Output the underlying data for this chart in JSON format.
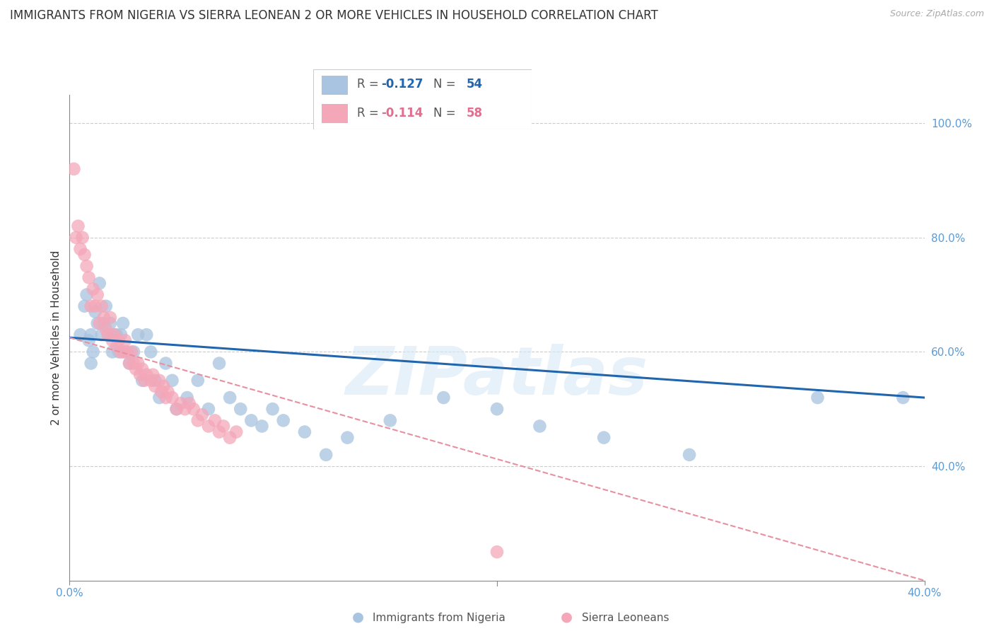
{
  "title": "IMMIGRANTS FROM NIGERIA VS SIERRA LEONEAN 2 OR MORE VEHICLES IN HOUSEHOLD CORRELATION CHART",
  "source": "Source: ZipAtlas.com",
  "ylabel": "2 or more Vehicles in Household",
  "R1": -0.127,
  "N1": 54,
  "R2": -0.114,
  "N2": 58,
  "xlim": [
    0.0,
    0.4
  ],
  "ylim": [
    0.2,
    1.05
  ],
  "yticks_right": [
    0.4,
    0.6,
    0.8,
    1.0
  ],
  "color_nigeria": "#a8c4e0",
  "color_sierra": "#f4a7b9",
  "color_nigeria_line": "#2166ac",
  "color_sierra_line": "#e88fa0",
  "watermark": "ZIPatlas",
  "nigeria_x": [
    0.005,
    0.007,
    0.008,
    0.009,
    0.01,
    0.01,
    0.011,
    0.012,
    0.013,
    0.014,
    0.015,
    0.016,
    0.017,
    0.018,
    0.019,
    0.02,
    0.021,
    0.022,
    0.023,
    0.024,
    0.025,
    0.026,
    0.028,
    0.03,
    0.032,
    0.034,
    0.036,
    0.038,
    0.04,
    0.042,
    0.045,
    0.048,
    0.05,
    0.055,
    0.06,
    0.065,
    0.07,
    0.075,
    0.08,
    0.085,
    0.09,
    0.095,
    0.1,
    0.11,
    0.12,
    0.13,
    0.15,
    0.175,
    0.2,
    0.22,
    0.25,
    0.29,
    0.35,
    0.39
  ],
  "nigeria_y": [
    0.63,
    0.68,
    0.7,
    0.62,
    0.58,
    0.63,
    0.6,
    0.67,
    0.65,
    0.72,
    0.63,
    0.65,
    0.68,
    0.63,
    0.65,
    0.6,
    0.63,
    0.63,
    0.6,
    0.63,
    0.65,
    0.6,
    0.58,
    0.6,
    0.63,
    0.55,
    0.63,
    0.6,
    0.55,
    0.52,
    0.58,
    0.55,
    0.5,
    0.52,
    0.55,
    0.5,
    0.58,
    0.52,
    0.5,
    0.48,
    0.47,
    0.5,
    0.48,
    0.46,
    0.42,
    0.45,
    0.48,
    0.52,
    0.5,
    0.47,
    0.45,
    0.42,
    0.52,
    0.52
  ],
  "sierra_x": [
    0.002,
    0.003,
    0.004,
    0.005,
    0.006,
    0.007,
    0.008,
    0.009,
    0.01,
    0.011,
    0.012,
    0.013,
    0.014,
    0.015,
    0.016,
    0.017,
    0.018,
    0.019,
    0.02,
    0.021,
    0.022,
    0.023,
    0.024,
    0.025,
    0.026,
    0.027,
    0.028,
    0.029,
    0.03,
    0.031,
    0.032,
    0.033,
    0.034,
    0.035,
    0.036,
    0.038,
    0.039,
    0.04,
    0.042,
    0.043,
    0.044,
    0.045,
    0.046,
    0.048,
    0.05,
    0.052,
    0.054,
    0.056,
    0.058,
    0.06,
    0.062,
    0.065,
    0.068,
    0.07,
    0.072,
    0.075,
    0.078,
    0.2
  ],
  "sierra_y": [
    0.92,
    0.8,
    0.82,
    0.78,
    0.8,
    0.77,
    0.75,
    0.73,
    0.68,
    0.71,
    0.68,
    0.7,
    0.65,
    0.68,
    0.66,
    0.64,
    0.63,
    0.66,
    0.62,
    0.63,
    0.61,
    0.62,
    0.6,
    0.6,
    0.62,
    0.6,
    0.58,
    0.6,
    0.58,
    0.57,
    0.58,
    0.56,
    0.57,
    0.55,
    0.56,
    0.55,
    0.56,
    0.54,
    0.55,
    0.53,
    0.54,
    0.52,
    0.53,
    0.52,
    0.5,
    0.51,
    0.5,
    0.51,
    0.5,
    0.48,
    0.49,
    0.47,
    0.48,
    0.46,
    0.47,
    0.45,
    0.46,
    0.25
  ]
}
